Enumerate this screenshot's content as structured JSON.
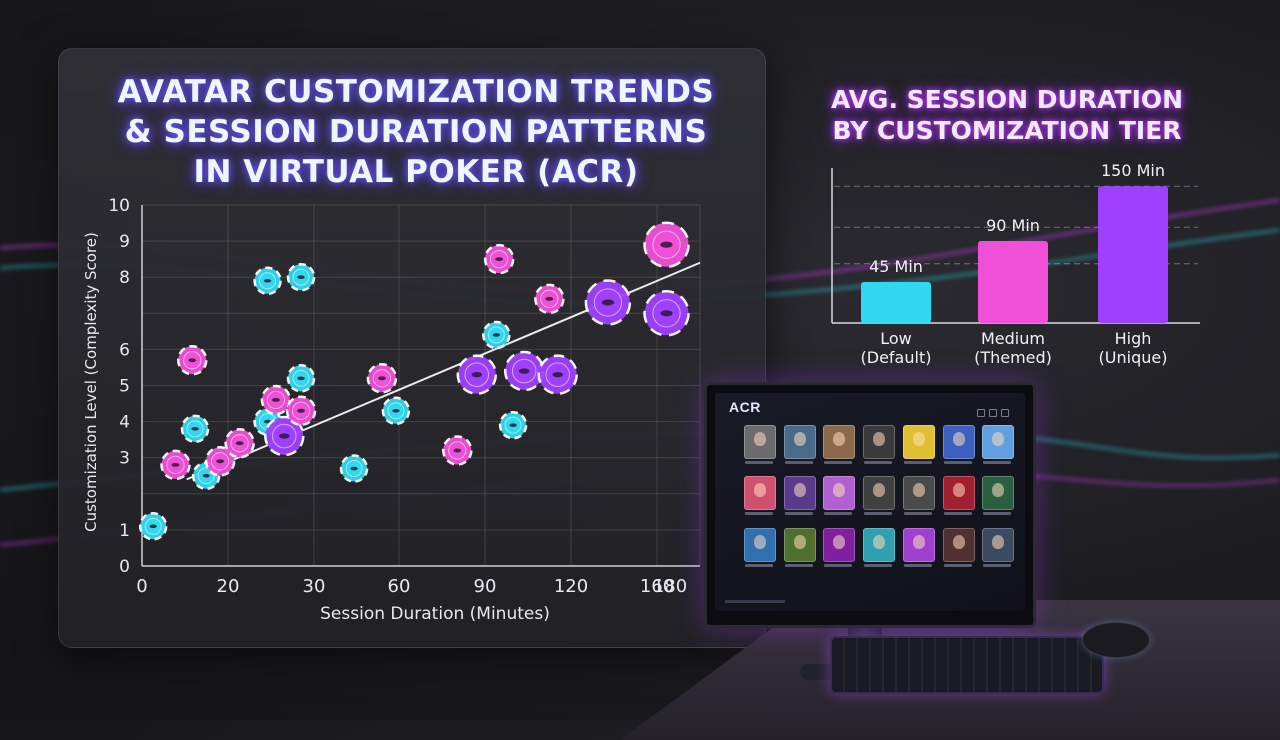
{
  "chart_data": [
    {
      "type": "scatter",
      "title": "AVATAR CUSTOMIZATION TRENDS & SESSION DURATION PATTERNS IN VIRTUAL POKER (ACR)",
      "title_lines": [
        "AVATAR CUSTOMIZATION TRENDS",
        "& SESSION DURATION PATTERNS",
        "IN VIRTUAL POKER (ACR)"
      ],
      "xlabel": "Session Duration (Minutes)",
      "ylabel": "Customization Level (Complexity Score)",
      "x_ticks": [
        "0",
        "20",
        "30",
        "60",
        "90",
        "120",
        "160",
        "180"
      ],
      "y_ticks": [
        "0",
        "1",
        "3",
        "4",
        "5",
        "6",
        "8",
        "9",
        "10"
      ],
      "grid": true,
      "trendline": true,
      "colors": {
        "low": "#30d8f0",
        "medium": "#f050d8",
        "high": "#a040ff"
      },
      "points": [
        {
          "x": 4,
          "y": 1.1,
          "tier": "low"
        },
        {
          "x": 12,
          "y": 2.8,
          "tier": "medium"
        },
        {
          "x": 18,
          "y": 5.7,
          "tier": "medium"
        },
        {
          "x": 19,
          "y": 3.8,
          "tier": "low"
        },
        {
          "x": 23,
          "y": 2.5,
          "tier": "low"
        },
        {
          "x": 28,
          "y": 2.9,
          "tier": "medium"
        },
        {
          "x": 35,
          "y": 3.4,
          "tier": "medium"
        },
        {
          "x": 45,
          "y": 7.9,
          "tier": "low"
        },
        {
          "x": 45,
          "y": 4.0,
          "tier": "low"
        },
        {
          "x": 48,
          "y": 4.6,
          "tier": "medium"
        },
        {
          "x": 51,
          "y": 3.6,
          "tier": "high"
        },
        {
          "x": 57,
          "y": 8.0,
          "tier": "low"
        },
        {
          "x": 57,
          "y": 5.2,
          "tier": "low"
        },
        {
          "x": 57,
          "y": 4.3,
          "tier": "medium"
        },
        {
          "x": 76,
          "y": 2.7,
          "tier": "low"
        },
        {
          "x": 86,
          "y": 5.2,
          "tier": "medium"
        },
        {
          "x": 91,
          "y": 4.3,
          "tier": "low"
        },
        {
          "x": 113,
          "y": 3.2,
          "tier": "medium"
        },
        {
          "x": 120,
          "y": 5.3,
          "tier": "high"
        },
        {
          "x": 127,
          "y": 6.4,
          "tier": "low"
        },
        {
          "x": 128,
          "y": 8.5,
          "tier": "medium"
        },
        {
          "x": 133,
          "y": 3.9,
          "tier": "low"
        },
        {
          "x": 137,
          "y": 5.4,
          "tier": "high"
        },
        {
          "x": 146,
          "y": 7.4,
          "tier": "medium"
        },
        {
          "x": 149,
          "y": 5.3,
          "tier": "high"
        },
        {
          "x": 167,
          "y": 7.3,
          "tier": "high"
        },
        {
          "x": 188,
          "y": 8.9,
          "tier": "medium"
        },
        {
          "x": 188,
          "y": 7.0,
          "tier": "high"
        }
      ]
    },
    {
      "type": "bar",
      "title": "AVG. SESSION DURATION BY CUSTOMIZATION TIER",
      "title_lines": [
        "AVG. SESSION DURATION",
        "BY CUSTOMIZATION TIER"
      ],
      "categories": [
        {
          "line1": "Low",
          "line2": "(Default)"
        },
        {
          "line1": "Medium",
          "line2": "(Themed)"
        },
        {
          "line1": "High",
          "line2": "(Unique)"
        }
      ],
      "values": [
        45,
        90,
        150
      ],
      "value_labels": [
        "45 Min",
        "90 Min",
        "150 Min"
      ],
      "colors": [
        "#30d8f0",
        "#f050d8",
        "#a040ff"
      ],
      "ylim": [
        0,
        170
      ],
      "grid": true
    }
  ],
  "monitor": {
    "logo": "ACR",
    "avatar_colors": [
      "#6c6c70",
      "#4a6a8a",
      "#8a6a4a",
      "#3a3a3a",
      "#e0c030",
      "#3a60c0",
      "#60a0e0",
      "#d05070",
      "#5a3a8a",
      "#b060d0",
      "#404040",
      "#4a4a4a",
      "#a02030",
      "#2a6040",
      "#3070b0",
      "#507030",
      "#8020a0",
      "#30a0b0",
      "#a040d0",
      "#503030",
      "#3a4a60"
    ]
  }
}
